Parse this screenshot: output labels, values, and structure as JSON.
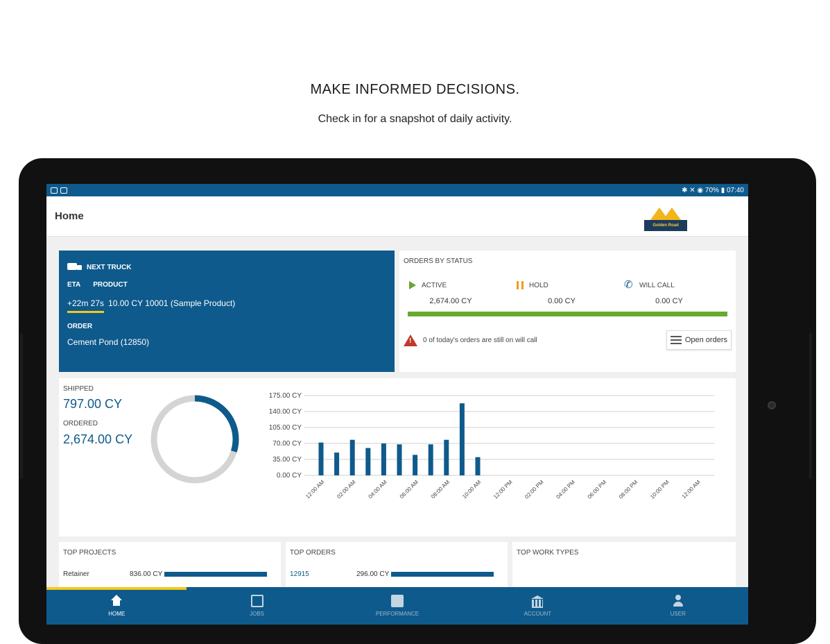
{
  "promo": {
    "headline": "MAKE INFORMED DECISIONS.",
    "subline": "Check in for a snapshot of daily activity."
  },
  "status_bar": {
    "right": "✱ ✕ ◉ 70% ▮ 07:40"
  },
  "app_bar": {
    "title": "Home",
    "logo_text": "Golden Road"
  },
  "next_truck": {
    "heading": "NEXT TRUCK",
    "eta_label": "ETA",
    "product_label": "PRODUCT",
    "eta_value": "+22m 27s",
    "product_value": "10.00 CY 10001 (Sample Product)",
    "order_label": "ORDER",
    "order_value": "Cement Pond (12850)"
  },
  "orders_by_status": {
    "heading": "ORDERS BY STATUS",
    "active_label": "ACTIVE",
    "active_value": "2,674.00 CY",
    "hold_label": "HOLD",
    "hold_value": "0.00 CY",
    "will_call_label": "WILL CALL",
    "will_call_value": "0.00 CY",
    "warning": "0 of today's orders are still on will call",
    "open_orders_label": "Open orders"
  },
  "metrics": {
    "shipped_label": "SHIPPED",
    "shipped_value": "797.00 CY",
    "ordered_label": "ORDERED",
    "ordered_value": "2,674.00 CY",
    "shipped_fraction": 0.298
  },
  "chart_data": {
    "type": "bar",
    "categories": [
      "12:00 AM",
      "01:00 AM",
      "02:00 AM",
      "03:00 AM",
      "04:00 AM",
      "05:00 AM",
      "06:00 AM",
      "07:00 AM",
      "08:00 AM",
      "09:00 AM",
      "10:00 AM",
      "11:00 AM",
      "12:00 PM",
      "01:00 PM",
      "02:00 PM",
      "03:00 PM",
      "04:00 PM",
      "05:00 PM",
      "06:00 PM",
      "07:00 PM",
      "08:00 PM",
      "09:00 PM",
      "10:00 PM",
      "11:00 PM",
      "12:00 AM"
    ],
    "x_tick_labels": [
      "12:00 AM",
      "02:00 AM",
      "04:00 AM",
      "06:00 AM",
      "08:00 AM",
      "10:00 AM",
      "12:00 PM",
      "02:00 PM",
      "04:00 PM",
      "06:00 PM",
      "08:00 PM",
      "10:00 PM",
      "12:00 AM"
    ],
    "values": [
      72,
      50,
      78,
      60,
      70,
      68,
      45,
      68,
      78,
      158,
      40,
      0,
      0,
      0,
      0,
      0,
      0,
      0,
      0,
      0,
      0,
      0,
      0,
      0,
      0
    ],
    "y_ticks": [
      "175.00 CY",
      "140.00 CY",
      "105.00 CY",
      "70.00 CY",
      "35.00 CY",
      "0.00 CY"
    ],
    "ylim": [
      0,
      175
    ],
    "grid": true,
    "bar_color": "#0f5a8c"
  },
  "top_projects": {
    "heading": "TOP PROJECTS",
    "row_name": "Retainer",
    "row_value": "836.00 CY",
    "row_fraction": 1.0
  },
  "top_orders": {
    "heading": "TOP ORDERS",
    "row_name": "12915",
    "row_value": "296.00 CY",
    "row_fraction": 1.0
  },
  "top_work_types": {
    "heading": "TOP WORK TYPES"
  },
  "tabs": [
    {
      "label": "HOME"
    },
    {
      "label": "JOBS"
    },
    {
      "label": "PERFORMANCE"
    },
    {
      "label": "ACCOUNT"
    },
    {
      "label": "USER"
    }
  ],
  "colors": {
    "primary": "#0f5a8c",
    "accent": "#f3c91c",
    "active_green": "#6aa92e",
    "hold_orange": "#f39c1c",
    "warning_red": "#c0392b"
  }
}
